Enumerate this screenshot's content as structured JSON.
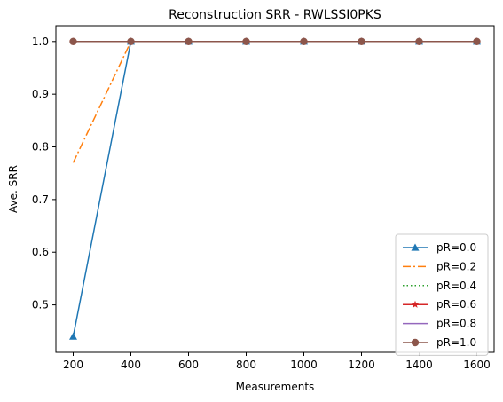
{
  "chart_data": {
    "type": "line",
    "title": "Reconstruction SRR - RWLSSI0PKS",
    "xlabel": "Measurements",
    "ylabel": "Ave. SRR",
    "x": [
      200,
      400,
      600,
      800,
      1000,
      1200,
      1400,
      1600
    ],
    "xlim": [
      140,
      1660
    ],
    "ylim": [
      0.41,
      1.03
    ],
    "xticks": [
      200,
      400,
      600,
      800,
      1000,
      1200,
      1400,
      1600
    ],
    "yticks": [
      0.5,
      0.6,
      0.7,
      0.8,
      0.9,
      1.0
    ],
    "ytick_labels": [
      "0.5",
      "0.6",
      "0.7",
      "0.8",
      "0.9",
      "1.0"
    ],
    "grid": false,
    "legend_position": "lower-right",
    "series": [
      {
        "name": "pR=0.0",
        "values": [
          0.44,
          1.0,
          1.0,
          1.0,
          1.0,
          1.0,
          1.0,
          1.0
        ],
        "color": "#1f77b4",
        "dash": "solid",
        "marker": "triangle"
      },
      {
        "name": "pR=0.2",
        "values": [
          0.77,
          1.0,
          1.0,
          1.0,
          1.0,
          1.0,
          1.0,
          1.0
        ],
        "color": "#ff7f0e",
        "dash": "dashdot",
        "marker": "none"
      },
      {
        "name": "pR=0.4",
        "values": [
          1.0,
          1.0,
          1.0,
          1.0,
          1.0,
          1.0,
          1.0,
          1.0
        ],
        "color": "#2ca02c",
        "dash": "dotted",
        "marker": "none"
      },
      {
        "name": "pR=0.6",
        "values": [
          1.0,
          1.0,
          1.0,
          1.0,
          1.0,
          1.0,
          1.0,
          1.0
        ],
        "color": "#d62728",
        "dash": "solid",
        "marker": "star"
      },
      {
        "name": "pR=0.8",
        "values": [
          1.0,
          1.0,
          1.0,
          1.0,
          1.0,
          1.0,
          1.0,
          1.0
        ],
        "color": "#9467bd",
        "dash": "solid",
        "marker": "none"
      },
      {
        "name": "pR=1.0",
        "values": [
          1.0,
          1.0,
          1.0,
          1.0,
          1.0,
          1.0,
          1.0,
          1.0
        ],
        "color": "#8c564b",
        "dash": "solid",
        "marker": "circle"
      }
    ]
  }
}
